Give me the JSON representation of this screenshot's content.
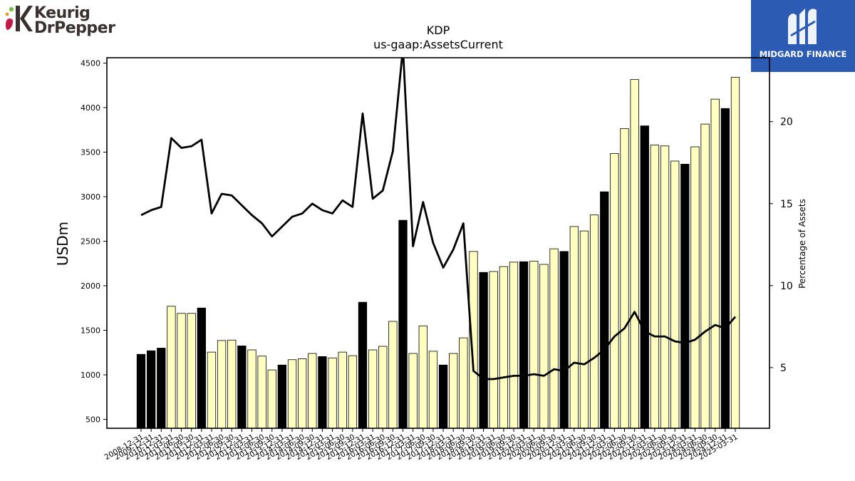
{
  "brand_left": {
    "line1": "Keurig",
    "line2": "DrPepper"
  },
  "brand_right": {
    "name": "MIDGARD FINANCE"
  },
  "colors": {
    "bar_highlight": "#000000",
    "bar_normal": "#ffffc0",
    "bar_edge": "#000000",
    "line": "#000000"
  },
  "chart_data": {
    "type": "bar",
    "title": "KDP",
    "subtitle": "us-gaap:AssetsCurrent",
    "ylabel": "USDm",
    "ylabel_right": "Percentage of Assets",
    "ylim": [
      400,
      4560
    ],
    "ylim_right": [
      1.3,
      23.9
    ],
    "yticks": [
      500,
      1000,
      1500,
      2000,
      2500,
      3000,
      3500,
      4000,
      4500
    ],
    "yticks_right": [
      5,
      10,
      15,
      20
    ],
    "categories": [
      "2008-12-31",
      "2009-12-31",
      "2010-12-31",
      "2011-03-31",
      "2011-06-30",
      "2011-09-30",
      "2011-12-31",
      "2012-03-31",
      "2012-06-30",
      "2012-09-30",
      "2012-12-31",
      "2013-03-31",
      "2013-06-30",
      "2013-09-30",
      "2013-12-31",
      "2014-03-31",
      "2014-06-30",
      "2014-09-30",
      "2014-12-31",
      "2015-03-31",
      "2015-06-30",
      "2015-09-30",
      "2015-12-31",
      "2016-03-31",
      "2016-06-30",
      "2016-09-30",
      "2016-12-31",
      "2017-03-31",
      "2017-06-30",
      "2017-09-30",
      "2017-12-31",
      "2018-03-31",
      "2018-06-30",
      "2018-09-30",
      "2018-12-31",
      "2019-03-31",
      "2019-06-30",
      "2019-09-30",
      "2019-12-31",
      "2020-03-31",
      "2020-06-30",
      "2020-09-30",
      "2020-12-31",
      "2021-03-31",
      "2021-06-30",
      "2021-09-30",
      "2021-12-31",
      "2022-03-31",
      "2022-06-30",
      "2022-09-30",
      "2022-12-31",
      "2023-03-31",
      "2023-06-30",
      "2023-09-30",
      "2023-12-31",
      "2024-03-31",
      "2024-06-30",
      "2024-09-30",
      "2024-12-31",
      "2025-03-31"
    ],
    "series": [
      {
        "type": "bar",
        "values": [
          1230,
          1270,
          1300,
          1770,
          1690,
          1690,
          1750,
          1255,
          1385,
          1390,
          1325,
          1280,
          1210,
          1055,
          1110,
          1170,
          1180,
          1240,
          1205,
          1190,
          1255,
          1215,
          1815,
          1280,
          1320,
          1600,
          2735,
          1240,
          1550,
          1265,
          1110,
          1240,
          1415,
          2385,
          2150,
          2160,
          2215,
          2265,
          2270,
          2275,
          2240,
          2415,
          2385,
          2665,
          2615,
          2795,
          3055,
          3485,
          3765,
          4315,
          3795,
          3580,
          3570,
          3400,
          3365,
          3560,
          3815,
          4095,
          3990,
          4340
        ],
        "highlight": [
          true,
          true,
          true,
          false,
          false,
          false,
          true,
          false,
          false,
          false,
          true,
          false,
          false,
          false,
          true,
          false,
          false,
          false,
          true,
          false,
          false,
          false,
          true,
          false,
          false,
          false,
          true,
          false,
          false,
          false,
          true,
          false,
          false,
          false,
          true,
          false,
          false,
          false,
          true,
          false,
          false,
          false,
          true,
          false,
          false,
          false,
          true,
          false,
          false,
          false,
          true,
          false,
          false,
          false,
          true,
          false,
          false,
          false,
          true,
          false
        ]
      },
      {
        "type": "line",
        "axis": "right",
        "values": [
          14.3,
          14.6,
          14.8,
          19.0,
          18.4,
          18.5,
          18.9,
          14.4,
          15.6,
          15.5,
          14.9,
          14.3,
          13.8,
          13.0,
          13.6,
          14.2,
          14.4,
          15.0,
          14.6,
          14.4,
          15.2,
          14.8,
          20.5,
          15.3,
          15.8,
          18.2,
          24.5,
          12.4,
          15.1,
          12.6,
          11.1,
          12.2,
          13.8,
          4.8,
          4.3,
          4.3,
          4.4,
          4.5,
          4.5,
          4.6,
          4.5,
          4.9,
          4.8,
          5.3,
          5.2,
          5.6,
          6.1,
          6.9,
          7.4,
          8.4,
          7.2,
          6.9,
          6.9,
          6.6,
          6.5,
          6.7,
          7.2,
          7.6,
          7.4,
          8.1
        ]
      }
    ],
    "grid": false,
    "legend": "none"
  }
}
